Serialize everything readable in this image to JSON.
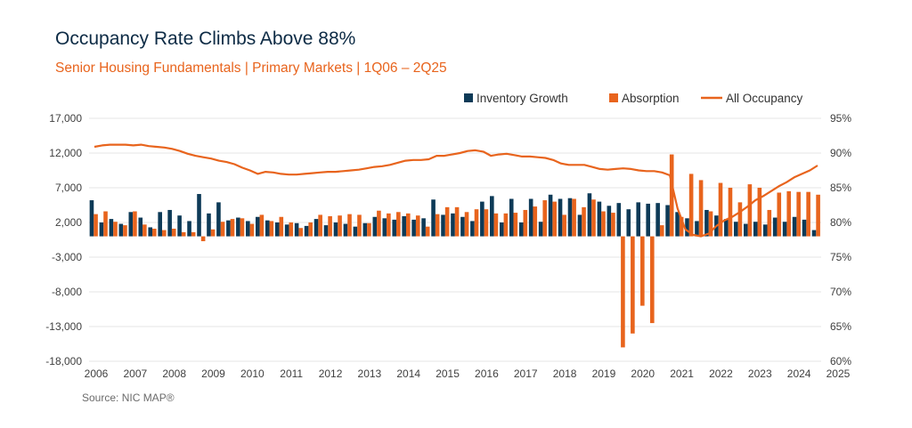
{
  "title": "Occupancy Rate Climbs Above 88%",
  "subtitle": "Senior Housing Fundamentals | Primary Markets | 1Q06 – 2Q25",
  "source": "Source: NIC MAP®",
  "colors": {
    "inventory": "#0d3a57",
    "absorption": "#e8641d",
    "occupancy": "#e8641d"
  },
  "chart_data": {
    "type": "bar",
    "title": "Occupancy Rate Climbs Above 88%",
    "legend": [
      "Inventory Growth",
      "Absorption",
      "All Occupancy"
    ],
    "legend_position": "top-right",
    "y_left": {
      "range": [
        -18000,
        17000
      ],
      "ticks": [
        "17,000",
        "12,000",
        "7,000",
        "2,000",
        "-3,000",
        "-8,000",
        "-13,000",
        "-18,000"
      ],
      "tick_values": [
        17000,
        12000,
        7000,
        2000,
        -3000,
        -8000,
        -13000,
        -18000
      ]
    },
    "y_right": {
      "range": [
        60,
        95
      ],
      "ticks": [
        "95%",
        "90%",
        "85%",
        "80%",
        "75%",
        "70%",
        "65%",
        "60%"
      ],
      "tick_values": [
        95,
        90,
        85,
        80,
        75,
        70,
        65,
        60
      ]
    },
    "x_tick_labels": [
      "2006",
      "2007",
      "2008",
      "2009",
      "2010",
      "2011",
      "2012",
      "2013",
      "2014",
      "2015",
      "2016",
      "2017",
      "2018",
      "2019",
      "2020",
      "2021",
      "2022",
      "2023",
      "2024",
      "2025"
    ],
    "series": [
      {
        "name": "Inventory Growth",
        "axis": "left",
        "kind": "bar",
        "values": [
          5200,
          2000,
          2500,
          1800,
          3500,
          2700,
          1300,
          3500,
          3800,
          3000,
          2200,
          6100,
          3300,
          4900,
          2300,
          2700,
          2200,
          2800,
          2300,
          2000,
          1700,
          1900,
          1500,
          2500,
          1600,
          2000,
          1800,
          1400,
          1900,
          2800,
          2600,
          2400,
          2900,
          2400,
          2600,
          5300,
          3100,
          3300,
          2800,
          2200,
          5000,
          5800,
          2000,
          5400,
          2000,
          5400,
          2100,
          6000,
          5400,
          5500,
          3100,
          6200,
          5000,
          4400,
          4800,
          3900,
          4900,
          4700,
          4800,
          4500,
          3500,
          2600,
          2200,
          3800,
          3000,
          2500,
          2100,
          1800,
          2100,
          1700,
          2700,
          2100,
          2800,
          2400,
          900
        ]
      },
      {
        "name": "Absorption",
        "axis": "left",
        "kind": "bar",
        "values": [
          3200,
          3600,
          2100,
          1600,
          3600,
          1700,
          1100,
          900,
          1100,
          600,
          600,
          -700,
          1000,
          2100,
          2500,
          2600,
          1800,
          3100,
          2200,
          2800,
          2000,
          1200,
          2000,
          3100,
          2900,
          3000,
          3200,
          3100,
          1900,
          3700,
          3300,
          3500,
          3300,
          3000,
          1400,
          3200,
          4200,
          4200,
          3500,
          3900,
          3900,
          3300,
          3300,
          3400,
          3800,
          4300,
          5200,
          5000,
          3100,
          5400,
          4200,
          5300,
          3600,
          3400,
          -16000,
          -14000,
          -10000,
          -12500,
          1600,
          11800,
          2800,
          9000,
          8100,
          3600,
          7700,
          7000,
          4900,
          7500,
          7000,
          3800,
          6300,
          6500,
          6400,
          6400,
          6000
        ]
      },
      {
        "name": "All Occupancy",
        "axis": "right",
        "kind": "line",
        "values": [
          90.9,
          91.1,
          91.2,
          91.2,
          91.2,
          91.1,
          91.2,
          91.0,
          90.9,
          90.8,
          90.6,
          90.3,
          89.9,
          89.6,
          89.4,
          89.2,
          88.9,
          88.7,
          88.4,
          87.9,
          87.5,
          87.0,
          87.3,
          87.2,
          87.0,
          86.9,
          86.9,
          87.0,
          87.1,
          87.2,
          87.3,
          87.3,
          87.4,
          87.5,
          87.6,
          87.8,
          88.0,
          88.1,
          88.3,
          88.6,
          88.9,
          89.0,
          89.0,
          89.1,
          89.6,
          89.6,
          89.8,
          90.0,
          90.3,
          90.4,
          90.2,
          89.6,
          89.8,
          89.9,
          89.7,
          89.5,
          89.5,
          89.4,
          89.3,
          89.0,
          88.5,
          88.3,
          88.3,
          88.3,
          88.0,
          87.7,
          87.6,
          87.7,
          87.8,
          87.7,
          87.5,
          87.4,
          87.4,
          87.2,
          86.8,
          82.0,
          79.0,
          78.2,
          78.0,
          78.4,
          79.5,
          80.3,
          80.8,
          81.5,
          82.3,
          83.2,
          83.8,
          84.5,
          85.2,
          85.8,
          86.5,
          87.0,
          87.5,
          88.2
        ]
      }
    ],
    "occupancy_x_quarters": [
      0,
      1,
      2,
      3,
      4,
      5,
      6,
      7,
      8,
      9,
      10,
      11,
      12,
      13,
      14,
      15,
      16,
      17,
      18,
      19,
      20,
      21,
      22,
      23,
      24,
      25,
      26,
      27,
      28,
      29,
      30,
      31,
      32,
      33,
      34,
      35,
      36,
      37,
      38,
      39,
      40,
      41,
      42,
      43,
      44,
      45,
      46,
      47,
      48,
      49,
      50,
      51,
      52,
      53,
      54,
      55,
      56,
      57,
      58,
      59,
      60,
      61,
      62,
      63,
      64,
      65,
      66,
      67,
      68,
      69,
      70,
      71,
      72,
      73,
      74,
      75,
      76,
      77,
      78,
      79,
      80,
      81,
      82,
      83,
      84,
      85,
      86,
      87,
      88,
      89,
      90,
      91,
      92,
      93
    ]
  }
}
